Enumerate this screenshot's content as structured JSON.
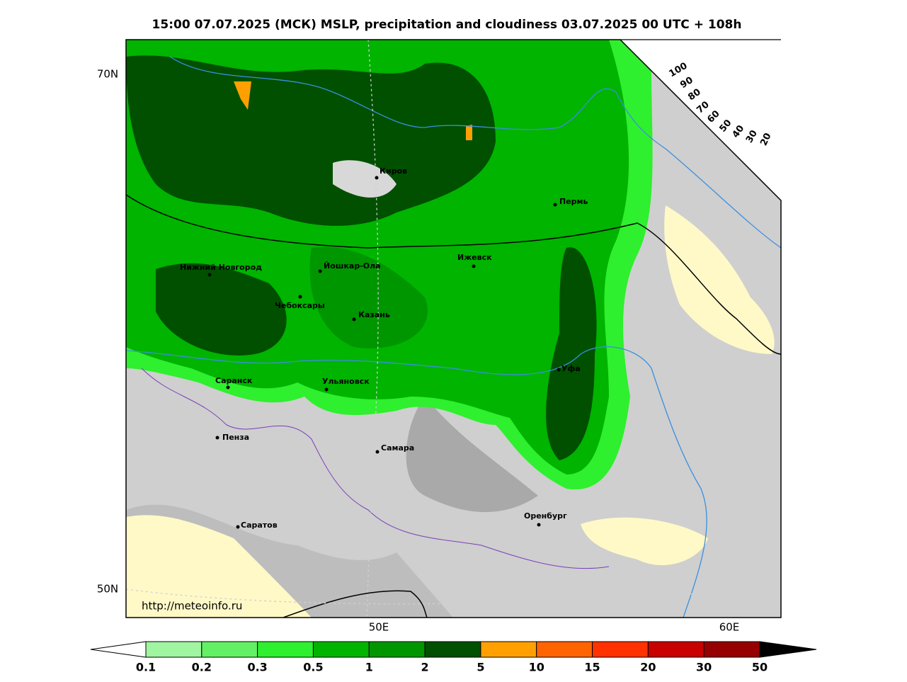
{
  "title": "15:00 07.07.2025 (МСК) MSLP, precipitation and cloudiness 03.07.2025 00 UTC + 108h",
  "map": {
    "lat_labels": [
      "70N",
      "50N"
    ],
    "lon_labels": [
      "50E",
      "60E"
    ],
    "cities": [
      {
        "name": "Киров"
      },
      {
        "name": "Пермь"
      },
      {
        "name": "Нижний Новгород"
      },
      {
        "name": "Йошкар-Ола"
      },
      {
        "name": "Ижевск"
      },
      {
        "name": "Чебоксары"
      },
      {
        "name": "Казань"
      },
      {
        "name": "Уфа"
      },
      {
        "name": "Саранск"
      },
      {
        "name": "Ульяновск"
      },
      {
        "name": "Пенза"
      },
      {
        "name": "Самара"
      },
      {
        "name": "Оренбург"
      },
      {
        "name": "Саратов"
      }
    ],
    "source": "http://meteoinfo.ru"
  },
  "cloud_scale": {
    "labels": [
      "100",
      "90",
      "80",
      "70",
      "60",
      "50",
      "40",
      "30",
      "20"
    ]
  },
  "legend": {
    "colors": [
      "#a0f5a0",
      "#64f064",
      "#2ef02e",
      "#00b400",
      "#009600",
      "#005000",
      "#ffa000",
      "#ff6400",
      "#ff3200",
      "#c80000",
      "#960000"
    ],
    "labels": [
      "0.1",
      "0.2",
      "0.3",
      "0.5",
      "1",
      "2",
      "5",
      "10",
      "15",
      "20",
      "30",
      "50"
    ]
  }
}
